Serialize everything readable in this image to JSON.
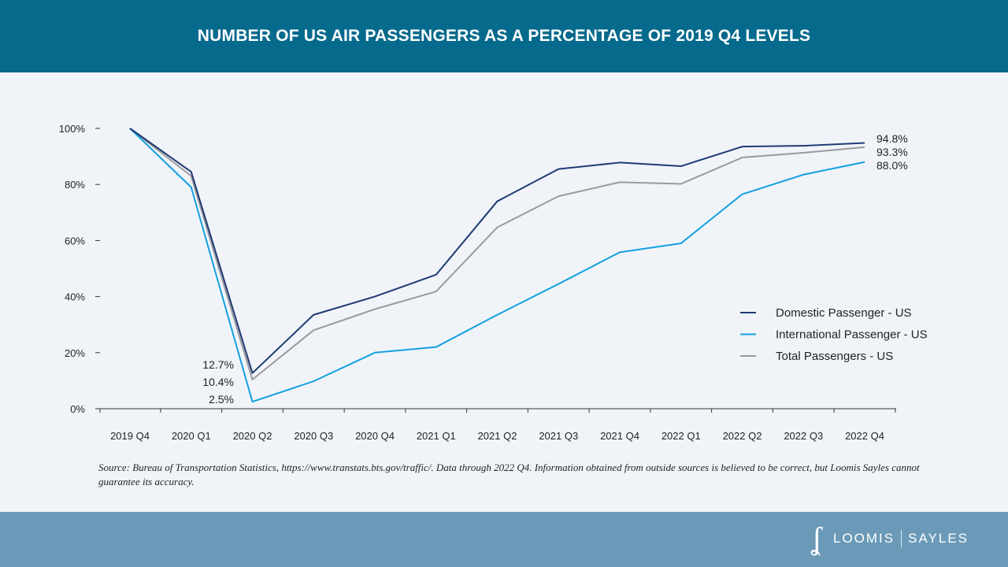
{
  "header": {
    "title": "NUMBER OF US AIR PASSENGERS AS A PERCENTAGE OF 2019 Q4 LEVELS"
  },
  "chart_data": {
    "type": "line",
    "title": "NUMBER OF US AIR PASSENGERS AS A PERCENTAGE OF 2019 Q4 LEVELS",
    "categories": [
      "2019 Q4",
      "2020 Q1",
      "2020 Q2",
      "2020 Q3",
      "2020 Q4",
      "2021 Q1",
      "2021 Q2",
      "2021 Q3",
      "2021 Q4",
      "2022 Q1",
      "2022 Q2",
      "2022 Q3",
      "2022 Q4"
    ],
    "yticks": [
      "0%",
      "20%",
      "40%",
      "60%",
      "80%",
      "100%"
    ],
    "ylim": [
      0,
      100
    ],
    "grid": false,
    "legend_position": "right",
    "series": [
      {
        "name": "Domestic Passenger - US",
        "color": "#1f3a73",
        "values": [
          100,
          84.5,
          12.7,
          33.5,
          40,
          47.8,
          74,
          85.5,
          87.8,
          86.5,
          93.5,
          93.8,
          94.8
        ]
      },
      {
        "name": "International Passenger - US",
        "color": "#14a0e0",
        "values": [
          100,
          79,
          2.5,
          9.8,
          20,
          22,
          33.5,
          44.5,
          55.8,
          59,
          76.5,
          83.5,
          88.0
        ]
      },
      {
        "name": "Total Passengers - US",
        "color": "#9a9a9e",
        "values": [
          100,
          83,
          10.4,
          28,
          35.5,
          41.8,
          64.7,
          75.8,
          80.8,
          80.2,
          89.6,
          91.3,
          93.3
        ]
      }
    ],
    "annotations": {
      "end": [
        "94.8%",
        "93.3%",
        "88.0%"
      ],
      "trough": [
        "12.7%",
        "10.4%",
        "2.5%"
      ]
    }
  },
  "source": "Source: Bureau of Transportation Statistics, https://www.transtats.bts.gov/traffic/. Data through 2022 Q4. Information obtained from outside sources is believed to be correct, but Loomis Sayles cannot guarantee its accuracy.",
  "footer": {
    "logo_mark": "LS",
    "logo_left": "LOOMIS",
    "logo_right": "SAYLES"
  }
}
